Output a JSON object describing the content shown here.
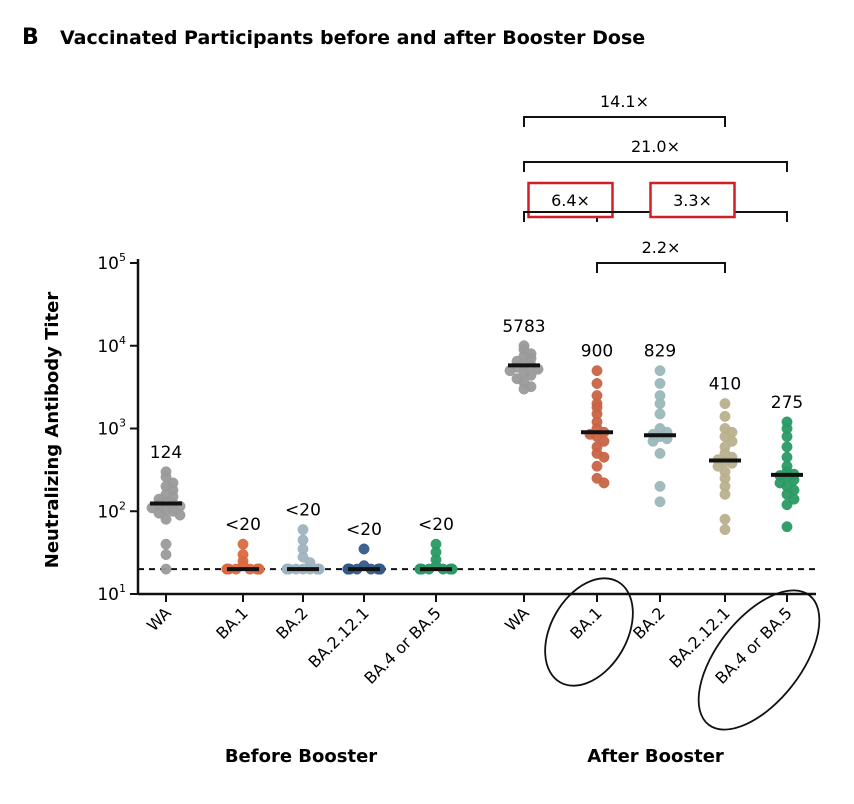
{
  "panel_letter": "B",
  "title": "Vaccinated Participants before and after Booster Dose",
  "chart_data": {
    "type": "scatter",
    "ylabel": "Neutralizing Antibody Titer",
    "yscale": "log",
    "ylim": [
      10,
      100000
    ],
    "y_ticks": [
      {
        "value": 10,
        "base": "10",
        "exp": "1"
      },
      {
        "value": 100,
        "base": "10",
        "exp": "2"
      },
      {
        "value": 1000,
        "base": "10",
        "exp": "3"
      },
      {
        "value": 10000,
        "base": "10",
        "exp": "4"
      },
      {
        "value": 100000,
        "base": "10",
        "exp": "5"
      }
    ],
    "detection_limit": 20,
    "groups": [
      {
        "label": "Before Booster",
        "categories": [
          0,
          1,
          2,
          3,
          4
        ]
      },
      {
        "label": "After Booster",
        "categories": [
          5,
          6,
          7,
          8,
          9
        ]
      }
    ],
    "categories": [
      {
        "label": "WA",
        "median_label": "124",
        "median": 124,
        "color": "#9a9a9a",
        "values": [
          300,
          260,
          220,
          200,
          180,
          160,
          150,
          140,
          130,
          125,
          120,
          115,
          110,
          105,
          100,
          95,
          90,
          80,
          40,
          30,
          20
        ]
      },
      {
        "label": "BA.1",
        "median_label": "<20",
        "median": 20,
        "color": "#d96a3f",
        "values": [
          40,
          30,
          25,
          22,
          20,
          20,
          20,
          20,
          20,
          20,
          20,
          20,
          20,
          20,
          20,
          20
        ]
      },
      {
        "label": "BA.2",
        "median_label": "<20",
        "median": 20,
        "color": "#9db3bf",
        "values": [
          60,
          45,
          35,
          28,
          24,
          20,
          20,
          20,
          20,
          20,
          20,
          20,
          20,
          20,
          20,
          20
        ]
      },
      {
        "label": "BA.2.12.1",
        "median_label": "<20",
        "median": 20,
        "color": "#345a8a",
        "values": [
          35,
          22,
          20,
          20,
          20,
          20,
          20,
          20,
          20,
          20,
          20,
          20,
          20,
          20,
          20,
          20
        ]
      },
      {
        "label": "BA.4 or BA.5",
        "median_label": "<20",
        "median": 20,
        "color": "#2a9a64",
        "values": [
          40,
          32,
          26,
          22,
          20,
          20,
          20,
          20,
          20,
          20,
          20,
          20,
          20,
          20,
          20,
          20
        ]
      },
      {
        "label": "WA",
        "median_label": "5783",
        "median": 5783,
        "color": "#9a9a9a",
        "values": [
          10000,
          9000,
          8000,
          7500,
          7000,
          6500,
          6000,
          5800,
          5500,
          5200,
          5000,
          4700,
          4400,
          4000,
          3600,
          3200,
          3000
        ]
      },
      {
        "label": "BA.1",
        "median_label": "900",
        "median": 900,
        "color": "#c96444",
        "values": [
          5000,
          3500,
          2500,
          2000,
          1800,
          1500,
          1200,
          1000,
          900,
          850,
          800,
          700,
          600,
          500,
          450,
          350,
          250,
          220
        ]
      },
      {
        "label": "BA.2",
        "median_label": "829",
        "median": 829,
        "color": "#9bb7bb",
        "values": [
          5000,
          3500,
          2500,
          2000,
          1500,
          1000,
          900,
          850,
          800,
          750,
          700,
          500,
          200,
          130
        ]
      },
      {
        "label": "BA.2.12.1",
        "median_label": "410",
        "median": 410,
        "color": "#b9b08e",
        "values": [
          2000,
          1400,
          1000,
          900,
          800,
          700,
          600,
          500,
          450,
          420,
          400,
          380,
          350,
          300,
          250,
          200,
          160,
          80,
          60
        ]
      },
      {
        "label": "BA.4 or BA.5",
        "median_label": "275",
        "median": 275,
        "color": "#2a9a64",
        "values": [
          1200,
          1000,
          800,
          600,
          450,
          350,
          300,
          280,
          270,
          260,
          240,
          220,
          200,
          180,
          160,
          140,
          120,
          65
        ]
      }
    ],
    "fold_changes": [
      {
        "from": 5,
        "to": 8,
        "label": "14.1×",
        "tier": 1,
        "boxed": false
      },
      {
        "from": 5,
        "to": 9,
        "label": "21.0×",
        "tier": 2,
        "boxed": false
      },
      {
        "from": 5,
        "to": 6,
        "label": "6.4×",
        "tier": 3,
        "boxed": true
      },
      {
        "from": 5,
        "to": 9,
        "label": "3.3×",
        "tier": 3,
        "boxed": true,
        "label_anchor_category": 7.5
      },
      {
        "from": 6,
        "to": 8,
        "label": "2.2×",
        "tier": 4,
        "boxed": false
      }
    ],
    "circled_categories": [
      6,
      9
    ]
  }
}
